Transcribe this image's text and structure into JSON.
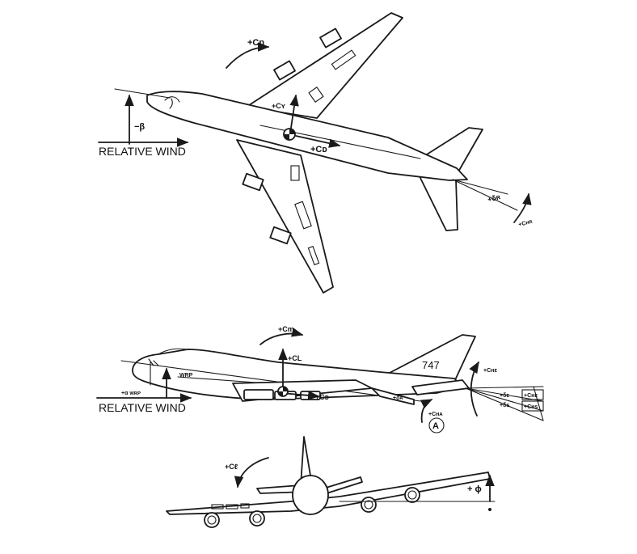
{
  "top_view": {
    "relative_wind": "RELATIVE WIND",
    "beta": "−β",
    "cn": "+Cn",
    "cy": "+Cʏ",
    "cd": "+Cᴅ",
    "delta_r": "+δʀ",
    "chr": "+Cʜʀ"
  },
  "side_view": {
    "cm": "+Cm",
    "cl": "+CL",
    "cd": "+Cᴅ",
    "alpha": "+α ᴡʀᴘ",
    "wrp": "WRP",
    "relative_wind": "RELATIVE WIND",
    "tail_number": "747",
    "che": "+Cʜᴇ",
    "delta_a": "+δᴀ",
    "cha": "+Cʜᴀ",
    "delta_e": "+δᴇ",
    "delta_s": "+δs",
    "che_box": "+Cʜᴇ",
    "chs_box": "+Cʜs",
    "circle_label": "A"
  },
  "front_view": {
    "cl_roll": "+Cℓ",
    "phi": "+ ϕ"
  }
}
